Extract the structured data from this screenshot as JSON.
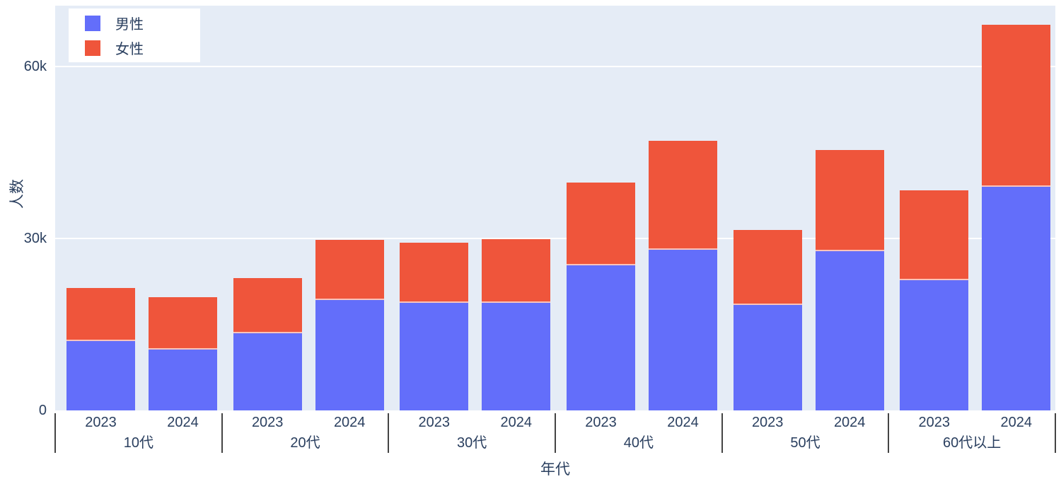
{
  "colors": {
    "male": "#636EFA",
    "female": "#EF553B",
    "plot_background": "#E5ECF6",
    "paper_background": "#FFFFFF",
    "gridline": "#FFFFFF",
    "text": "#2A3F5F",
    "divider": "#444444"
  },
  "legend": {
    "items": [
      {
        "label": "男性",
        "color": "#636EFA"
      },
      {
        "label": "女性",
        "color": "#EF553B"
      }
    ]
  },
  "chart_data": {
    "type": "bar",
    "stacked": true,
    "orientation": "vertical",
    "title": "",
    "xlabel": "年代",
    "ylabel": "人数",
    "grid": true,
    "legend_position": "top-left-inside",
    "ylim": [
      0,
      70600
    ],
    "yticks": [
      {
        "label": "0",
        "value": 0
      },
      {
        "label": "30k",
        "value": 30000
      },
      {
        "label": "60k",
        "value": 60000
      }
    ],
    "groups": [
      "10代",
      "20代",
      "30代",
      "40代",
      "50代",
      "60代以上"
    ],
    "years": [
      "2023",
      "2024"
    ],
    "categories": [
      [
        "10代",
        "2023"
      ],
      [
        "10代",
        "2024"
      ],
      [
        "20代",
        "2023"
      ],
      [
        "20代",
        "2024"
      ],
      [
        "30代",
        "2023"
      ],
      [
        "30代",
        "2024"
      ],
      [
        "40代",
        "2023"
      ],
      [
        "40代",
        "2024"
      ],
      [
        "50代",
        "2023"
      ],
      [
        "50代",
        "2024"
      ],
      [
        "60代以上",
        "2023"
      ],
      [
        "60代以上",
        "2024"
      ]
    ],
    "series": [
      {
        "name": "男性",
        "color": "#636EFA",
        "values": [
          12100,
          10600,
          13400,
          19300,
          18800,
          18800,
          25300,
          28000,
          18400,
          27800,
          22700,
          39000
        ]
      },
      {
        "name": "女性",
        "color": "#EF553B",
        "values": [
          9300,
          9200,
          9700,
          10500,
          10500,
          11100,
          14500,
          19000,
          13100,
          17600,
          15700,
          28300
        ]
      }
    ],
    "stack_totals": [
      21400,
      19800,
      23100,
      29800,
      29300,
      29900,
      39800,
      47000,
      31500,
      45400,
      38400,
      67300
    ]
  }
}
